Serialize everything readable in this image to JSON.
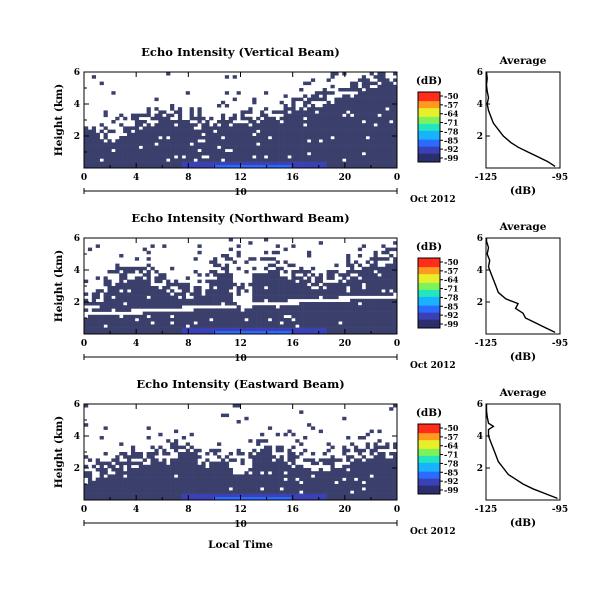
{
  "colors": {
    "colormap": [
      "#2b2f6e",
      "#3a41b5",
      "#2b6cff",
      "#18b3ff",
      "#22e6c0",
      "#7df25a",
      "#e7ee2a",
      "#ff9a1e",
      "#ff2d1a"
    ],
    "background": "#3a3f6b"
  },
  "chart_data": [
    {
      "type": "heatmap",
      "title": "Echo Intensity (Vertical Beam)",
      "ylabel": "Height (km)",
      "x_ticks": [
        "0",
        "4",
        "8",
        "12",
        "16",
        "20",
        "0"
      ],
      "y_ticks": [
        "2",
        "4",
        "6"
      ],
      "xlim": [
        0,
        24
      ],
      "ylim": [
        0,
        6
      ],
      "date_day": "10",
      "date_suffix": "Oct 2012",
      "colorbar": {
        "unit": "(dB)",
        "ticks": [
          "-50",
          "-57",
          "-64",
          "-71",
          "-78",
          "-85",
          "-92",
          "-99"
        ]
      },
      "pattern": {
        "bg_ceiling_km": [
          2.1,
          2.4,
          2.2,
          2.5,
          2.9,
          3.2,
          3.4,
          3.6,
          3.5,
          3.1,
          2.8,
          3.1,
          3.3,
          3.2,
          3.4,
          3.7,
          3.9,
          4.2,
          4.4,
          4.7,
          5.1,
          5.3,
          5.5,
          5.9,
          6.0
        ],
        "stripe": false,
        "void_col": false
      },
      "average_profile": {
        "title": "Average",
        "xlabel": "(dB)",
        "x_ticks": [
          "-125",
          "-95"
        ],
        "y_ticks": [
          "2",
          "4",
          "6"
        ],
        "xlim": [
          -125,
          -95
        ],
        "ylim": [
          0,
          6
        ],
        "height_km": [
          0.1,
          0.4,
          0.7,
          1.0,
          1.3,
          1.6,
          2.0,
          2.4,
          2.8,
          3.2,
          3.6,
          4.0,
          4.4,
          4.8,
          5.2,
          5.6,
          6.0
        ],
        "db": [
          -97,
          -100,
          -104,
          -108,
          -112,
          -115,
          -118,
          -120,
          -122,
          -123,
          -124,
          -124.5,
          -124,
          -124.5,
          -124.8,
          -124.5,
          -124.8
        ]
      }
    },
    {
      "type": "heatmap",
      "title": "Echo Intensity (Northward Beam)",
      "ylabel": "Height (km)",
      "x_ticks": [
        "0",
        "4",
        "8",
        "12",
        "16",
        "20",
        "0"
      ],
      "y_ticks": [
        "2",
        "4",
        "6"
      ],
      "xlim": [
        0,
        24
      ],
      "ylim": [
        0,
        6
      ],
      "date_day": "10",
      "date_suffix": "Oct 2012",
      "colorbar": {
        "unit": "(dB)",
        "ticks": [
          "-50",
          "-57",
          "-64",
          "-71",
          "-78",
          "-85",
          "-92",
          "-99"
        ]
      },
      "pattern": {
        "bg_ceiling_km": [
          1.8,
          2.2,
          3.6,
          3.8,
          4.0,
          3.9,
          3.4,
          2.9,
          2.7,
          3.0,
          3.9,
          4.4,
          4.6,
          4.3,
          4.5,
          4.3,
          4.0,
          3.6,
          3.3,
          3.5,
          3.9,
          4.3,
          4.6,
          4.9,
          5.0
        ],
        "stripe": true,
        "void_col": true
      },
      "average_profile": {
        "title": "Average",
        "xlabel": "(dB)",
        "x_ticks": [
          "-125",
          "-95"
        ],
        "y_ticks": [
          "2",
          "4",
          "6"
        ],
        "xlim": [
          -125,
          -95
        ],
        "ylim": [
          0,
          6
        ],
        "height_km": [
          0.1,
          0.4,
          0.7,
          1.0,
          1.3,
          1.6,
          1.9,
          2.2,
          2.6,
          3.0,
          3.4,
          3.8,
          4.2,
          4.6,
          5.0,
          5.4,
          5.8,
          6.0
        ],
        "db": [
          -97,
          -101,
          -105,
          -109,
          -110,
          -113,
          -112,
          -117,
          -120,
          -121,
          -122,
          -123,
          -124,
          -123.5,
          -124.5,
          -124,
          -124.8,
          -124.8
        ]
      }
    },
    {
      "type": "heatmap",
      "title": "Echo Intensity (Eastward Beam)",
      "ylabel": "Height (km)",
      "x_ticks": [
        "0",
        "4",
        "8",
        "12",
        "16",
        "20",
        "0"
      ],
      "y_ticks": [
        "2",
        "4",
        "6"
      ],
      "xlim": [
        0,
        24
      ],
      "ylim": [
        0,
        6
      ],
      "date_day": "10",
      "date_suffix": "Oct 2012",
      "xlabel": "Local Time",
      "colorbar": {
        "unit": "(dB)",
        "ticks": [
          "-50",
          "-57",
          "-64",
          "-71",
          "-78",
          "-85",
          "-92",
          "-99"
        ]
      },
      "pattern": {
        "bg_ceiling_km": [
          1.6,
          1.9,
          2.2,
          2.4,
          2.6,
          2.9,
          3.0,
          3.2,
          3.1,
          2.8,
          2.4,
          2.6,
          2.9,
          3.3,
          3.5,
          3.1,
          2.7,
          2.4,
          2.3,
          2.5,
          2.8,
          3.0,
          3.1,
          3.2,
          3.1
        ],
        "stripe": false,
        "void_col": true
      },
      "average_profile": {
        "title": "Average",
        "xlabel": "(dB)",
        "x_ticks": [
          "-125",
          "-95"
        ],
        "y_ticks": [
          "2",
          "4",
          "6"
        ],
        "xlim": [
          -125,
          -95
        ],
        "ylim": [
          0,
          6
        ],
        "height_km": [
          0.1,
          0.4,
          0.7,
          1.0,
          1.3,
          1.6,
          2.0,
          2.4,
          2.8,
          3.2,
          3.6,
          4.0,
          4.4,
          4.6,
          4.8,
          5.2,
          5.6,
          6.0
        ],
        "db": [
          -96,
          -101,
          -106,
          -110,
          -113,
          -116,
          -118,
          -120,
          -121,
          -122,
          -123,
          -124,
          -124,
          -122,
          -124,
          -124.5,
          -124.8,
          -124.8
        ]
      }
    }
  ]
}
